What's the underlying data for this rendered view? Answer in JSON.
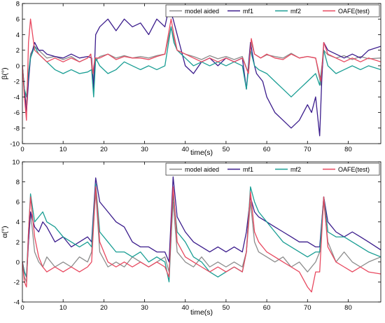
{
  "chart_data": [
    {
      "type": "line",
      "ylabel": "β(°)",
      "xlabel": "time(s)",
      "xlim": [
        0,
        88
      ],
      "ylim": [
        -10,
        8
      ],
      "xticks": [
        0,
        10,
        20,
        30,
        40,
        50,
        60,
        70,
        80
      ],
      "yticks": [
        -10,
        -8,
        -6,
        -4,
        -2,
        0,
        2,
        4,
        6,
        8
      ],
      "legend_position": "top-right",
      "series": [
        {
          "name": "model aided",
          "color": "#8c8c8c",
          "x": [
            0,
            0.5,
            1,
            1.5,
            2,
            3,
            4,
            5,
            6,
            8,
            10,
            12,
            14,
            16,
            16.8,
            17.3,
            17.8,
            19,
            21,
            23,
            25,
            27,
            29,
            31,
            33,
            35,
            36.5,
            37.2,
            38,
            40,
            42,
            44,
            46,
            48,
            50,
            52,
            54,
            55.5,
            56.2,
            57,
            58.5,
            60,
            62,
            64,
            66,
            68,
            70,
            72,
            73.3,
            74,
            75,
            77,
            79,
            81,
            83,
            85,
            88
          ],
          "y": [
            0,
            -3.5,
            -5,
            -1,
            1.5,
            2.5,
            2,
            1.5,
            1,
            1.2,
            0.8,
            1.2,
            0.5,
            1,
            1.5,
            -2.5,
            0.5,
            1.2,
            1.5,
            1,
            1.3,
            1,
            1.2,
            1,
            1.3,
            1.5,
            5,
            3.5,
            2,
            1.5,
            1.2,
            0.8,
            1.3,
            0.9,
            1.2,
            0.8,
            1.2,
            -1,
            3,
            1.5,
            1,
            1.4,
            1.2,
            1,
            1.6,
            1,
            1.2,
            1,
            -2.5,
            2,
            1.4,
            1,
            1.3,
            0.8,
            1.2,
            0.9,
            1
          ]
        },
        {
          "name": "mf1",
          "color": "#3b1c8c",
          "x": [
            0,
            0.5,
            1,
            1.5,
            2,
            3,
            4,
            5,
            6,
            8,
            10,
            12,
            14,
            16,
            17,
            17.5,
            18,
            19,
            21,
            23,
            25,
            27,
            29,
            31,
            33,
            35,
            36,
            37,
            38,
            40,
            42,
            44,
            46,
            48,
            50,
            52,
            54,
            55,
            56,
            57,
            57.5,
            59,
            60,
            62,
            64,
            66,
            68,
            70,
            71,
            72,
            73,
            73.5,
            74,
            75,
            77,
            79,
            81,
            83,
            85,
            88
          ],
          "y": [
            0,
            -3,
            -6,
            -2,
            1,
            3,
            2,
            2,
            1.5,
            1.2,
            1,
            1.5,
            1,
            1.2,
            1,
            -3,
            4,
            5,
            6,
            4.5,
            6,
            5,
            5.5,
            4,
            6,
            5,
            7.5,
            6,
            4,
            0,
            -1,
            0.5,
            1,
            0,
            1,
            0.5,
            1,
            -3,
            3,
            0,
            -1,
            -2,
            -4,
            -6,
            -7,
            -8,
            -7,
            -5,
            -6,
            -4,
            -9,
            -2,
            3,
            2,
            1.5,
            1,
            1.5,
            1,
            2,
            2.5
          ]
        },
        {
          "name": "mf2",
          "color": "#1a9e94",
          "x": [
            0,
            0.5,
            1,
            1.5,
            2,
            3,
            4,
            5,
            6,
            8,
            10,
            12,
            14,
            16,
            17,
            17.5,
            18,
            19,
            21,
            23,
            25,
            27,
            29,
            31,
            33,
            35,
            36.5,
            37.2,
            38,
            40,
            42,
            44,
            46,
            48,
            50,
            52,
            54,
            55,
            56,
            57,
            58,
            60,
            62,
            64,
            66,
            68,
            70,
            72,
            73,
            74,
            75,
            77,
            79,
            81,
            83,
            85,
            88
          ],
          "y": [
            0,
            -3,
            -4,
            -1,
            1,
            2.5,
            1.5,
            1,
            0.5,
            -0.5,
            -1,
            -0.5,
            -1,
            -0.8,
            -0.5,
            -4,
            1,
            0,
            -1,
            -0.5,
            0.5,
            0,
            -0.5,
            0,
            -0.5,
            0,
            5,
            3,
            2,
            1,
            0,
            0.5,
            0,
            0.5,
            0,
            0.5,
            0,
            -3,
            2,
            0,
            -0.5,
            -1,
            -2,
            -3,
            -4,
            -3,
            -2,
            -1,
            -2.5,
            2,
            0,
            -1,
            -0.5,
            0,
            -0.5,
            0,
            -0.5
          ]
        },
        {
          "name": "OAFE(test)",
          "color": "#e8485f",
          "x": [
            0,
            0.5,
            1,
            1.5,
            2,
            3,
            4,
            5,
            6,
            8,
            10,
            12,
            14,
            16,
            16.8,
            17.3,
            17.8,
            19,
            21,
            23,
            25,
            27,
            29,
            31,
            33,
            35,
            36.5,
            37.2,
            38,
            40,
            42,
            44,
            46,
            48,
            50,
            52,
            54,
            55.5,
            56.2,
            57,
            58.5,
            60,
            62,
            64,
            66,
            68,
            70,
            72,
            73.3,
            74,
            75,
            77,
            79,
            81,
            83,
            85,
            88
          ],
          "y": [
            0,
            -4,
            -7,
            3,
            6,
            2,
            1.5,
            1,
            0.5,
            1,
            0.5,
            1,
            0.5,
            1,
            1.5,
            -1,
            1,
            1,
            1.5,
            0.8,
            1.2,
            1,
            1,
            0.8,
            1.2,
            1.5,
            6,
            4,
            2,
            1.5,
            1,
            0.5,
            1,
            0.5,
            1,
            0.5,
            1,
            -1,
            3.5,
            1.5,
            1,
            1.5,
            1,
            0.8,
            1.5,
            1,
            1.2,
            1,
            -2,
            3,
            1.5,
            1,
            0.5,
            1,
            0.5,
            1,
            0.5
          ]
        }
      ]
    },
    {
      "type": "line",
      "ylabel": "α(°)",
      "xlabel": "time(s)",
      "xlim": [
        0,
        88
      ],
      "ylim": [
        -4,
        10
      ],
      "xticks": [
        0,
        10,
        20,
        30,
        40,
        50,
        60,
        70,
        80
      ],
      "yticks": [
        -4,
        -2,
        0,
        2,
        4,
        6,
        8,
        10
      ],
      "legend_position": "top-right",
      "series": [
        {
          "name": "model aided",
          "color": "#8c8c8c",
          "x": [
            0,
            0.5,
            1,
            1.5,
            2,
            3,
            4,
            5,
            6,
            8,
            10,
            12,
            14,
            16,
            17,
            18,
            19,
            21,
            23,
            25,
            27,
            29,
            31,
            33,
            35,
            36,
            37,
            38,
            40,
            42,
            44,
            46,
            48,
            50,
            52,
            54,
            55,
            56,
            57,
            58,
            60,
            62,
            64,
            66,
            68,
            70,
            72,
            73,
            74,
            75,
            77,
            79,
            81,
            83,
            85,
            88
          ],
          "y": [
            0,
            -1.5,
            -2,
            2,
            5,
            1,
            0,
            -0.5,
            0.5,
            -0.5,
            0,
            -0.5,
            0.5,
            0,
            1,
            7,
            1,
            -0.5,
            0,
            -0.5,
            0.5,
            0,
            -0.5,
            0,
            0.5,
            -1,
            6,
            1,
            0,
            -0.5,
            0.5,
            -0.5,
            0,
            -0.5,
            0,
            -0.5,
            1,
            6,
            2,
            1,
            0.5,
            0,
            0.5,
            -0.5,
            0,
            -1,
            0,
            1,
            6,
            2,
            0,
            1,
            0,
            -0.5,
            0,
            0.5
          ]
        },
        {
          "name": "mf1",
          "color": "#3b1c8c",
          "x": [
            0,
            0.5,
            1,
            1.5,
            2,
            3,
            4,
            5,
            6,
            8,
            10,
            12,
            14,
            16,
            17,
            18,
            19,
            21,
            23,
            25,
            27,
            29,
            31,
            33,
            35,
            36,
            37,
            38,
            40,
            42,
            44,
            46,
            48,
            50,
            52,
            54,
            55,
            56,
            57,
            58,
            60,
            62,
            64,
            66,
            68,
            70,
            72,
            73,
            74,
            75,
            77,
            79,
            81,
            83,
            85,
            88
          ],
          "y": [
            0,
            -1,
            -1.5,
            2,
            5,
            3.5,
            3,
            4,
            3.5,
            2,
            2.5,
            1.5,
            2,
            2.5,
            2,
            8.4,
            6,
            5,
            4,
            3.5,
            2,
            1.5,
            1.5,
            1,
            1,
            0,
            8.5,
            4.5,
            3,
            2,
            1.5,
            1,
            1.5,
            1,
            1.5,
            1,
            3,
            6.5,
            5,
            4.5,
            4,
            3.5,
            3,
            2.5,
            2,
            2,
            1.5,
            1.5,
            6.5,
            4,
            3,
            2.5,
            3,
            2.5,
            2,
            1.2
          ]
        },
        {
          "name": "mf2",
          "color": "#1a9e94",
          "x": [
            0,
            0.5,
            1,
            1.5,
            2,
            3,
            4,
            5,
            6,
            8,
            10,
            12,
            14,
            16,
            17,
            18,
            19,
            21,
            23,
            25,
            27,
            29,
            31,
            33,
            35,
            36,
            37,
            38,
            40,
            42,
            44,
            46,
            48,
            50,
            52,
            54,
            55,
            56,
            57,
            58,
            60,
            62,
            64,
            66,
            68,
            70,
            72,
            73,
            74,
            75,
            77,
            79,
            81,
            83,
            85,
            88
          ],
          "y": [
            0,
            -1,
            -1.5,
            3,
            6.8,
            4,
            4.5,
            5,
            4,
            3.5,
            2.5,
            2,
            1.5,
            2,
            1.5,
            7.8,
            3,
            2,
            1,
            1,
            0.5,
            1,
            0,
            0.5,
            0,
            -2,
            6.8,
            3,
            2,
            0.5,
            0,
            -1,
            -1.5,
            -1,
            -0.5,
            -1,
            1,
            7.5,
            6,
            5,
            4,
            3,
            2,
            1.5,
            1,
            0.5,
            1,
            1,
            6.5,
            3,
            2.5,
            2.5,
            2,
            1.5,
            1,
            0.5
          ]
        },
        {
          "name": "OAFE(test)",
          "color": "#e8485f",
          "x": [
            0,
            0.5,
            1,
            1.5,
            2,
            3,
            4,
            5,
            6,
            8,
            10,
            12,
            14,
            16,
            17,
            18,
            19,
            21,
            23,
            25,
            27,
            29,
            31,
            33,
            35,
            36,
            37,
            38,
            40,
            42,
            44,
            46,
            48,
            50,
            52,
            54,
            55,
            56,
            57,
            58,
            60,
            62,
            64,
            66,
            68,
            70,
            71,
            72,
            73,
            74,
            75,
            77,
            79,
            81,
            83,
            85,
            88
          ],
          "y": [
            0,
            -2,
            -2.5,
            3,
            6.5,
            2.5,
            0.5,
            -0.5,
            -1,
            -0.5,
            -1,
            -0.5,
            -1,
            -0.5,
            0,
            7.5,
            2,
            0,
            -0.5,
            0,
            -0.5,
            0,
            -0.5,
            0,
            -0.5,
            -1.5,
            7.5,
            2,
            0.5,
            0,
            -0.5,
            -1,
            -0.5,
            -1,
            -0.5,
            -1,
            1,
            7,
            3,
            2,
            1,
            0.5,
            0,
            -0.5,
            -1,
            -2.5,
            -3,
            -1,
            -1,
            6.5,
            1.5,
            0,
            -0.5,
            -1,
            -0.5,
            -1,
            -1.2
          ]
        }
      ]
    }
  ]
}
